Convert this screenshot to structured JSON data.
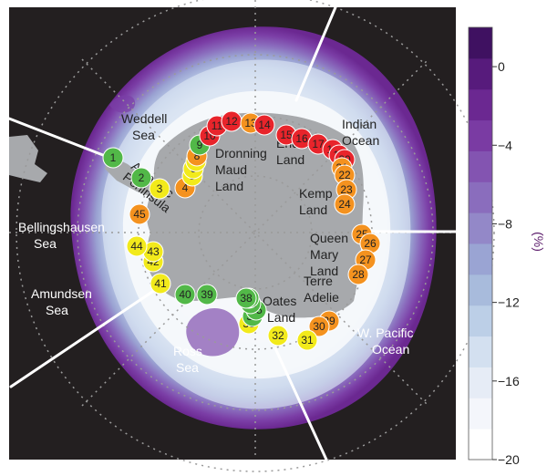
{
  "colorbar": {
    "ticks": [
      {
        "value": 0,
        "label": "0"
      },
      {
        "value": -4,
        "label": "−4"
      },
      {
        "value": -8,
        "label": "−8"
      },
      {
        "value": -12,
        "label": "−12"
      },
      {
        "value": -16,
        "label": "−16"
      },
      {
        "value": -20,
        "label": "−20"
      }
    ],
    "unit": "(%)",
    "range": [
      -20,
      2
    ],
    "colors": [
      "#ffffff",
      "#f4f6fb",
      "#e6ecf6",
      "#d3e0f0",
      "#bccfe7",
      "#a8bbdc",
      "#9aa4d3",
      "#9388c8",
      "#8a6dbd",
      "#8354b1",
      "#7a3ba3",
      "#6b2891",
      "#571b7c",
      "#3f1161"
    ]
  },
  "regions": {
    "weddell": [
      "Weddell",
      "Sea"
    ],
    "indian": [
      "Indian",
      "Ocean"
    ],
    "dronning": [
      "Dronning",
      "Maud",
      "Land"
    ],
    "enderby": [
      "Enderby",
      "Land"
    ],
    "kemp": [
      "Kemp",
      "Land"
    ],
    "antarctic_peninsula": [
      "Antarctic",
      "Peninsula"
    ],
    "bellingshausen": [
      "Bellingshausen",
      "Sea"
    ],
    "amundsen": [
      "Amundsen",
      "Sea"
    ],
    "queen_mary": [
      "Queen",
      "Mary",
      "Land"
    ],
    "terre_adelie": [
      "Terre",
      "Adelie"
    ],
    "oates": [
      "Oates",
      "Land"
    ],
    "wpacific": [
      "W. Pacific",
      "Ocean"
    ],
    "ross": [
      "Ross",
      "Sea"
    ]
  },
  "site_colors": {
    "red": "#e8242b",
    "orange": "#f4921f",
    "yellow": "#f2ea1b",
    "green": "#52b848"
  },
  "sites": [
    {
      "n": "1",
      "c": "green"
    },
    {
      "n": "2",
      "c": "green"
    },
    {
      "n": "3",
      "c": "yellow"
    },
    {
      "n": "4",
      "c": "orange"
    },
    {
      "n": "5",
      "c": "yellow"
    },
    {
      "n": "6",
      "c": "yellow"
    },
    {
      "n": "7",
      "c": "yellow"
    },
    {
      "n": "8",
      "c": "orange"
    },
    {
      "n": "9",
      "c": "green"
    },
    {
      "n": "10",
      "c": "red"
    },
    {
      "n": "11",
      "c": "red"
    },
    {
      "n": "12",
      "c": "red"
    },
    {
      "n": "13",
      "c": "orange"
    },
    {
      "n": "14",
      "c": "red"
    },
    {
      "n": "15",
      "c": "red"
    },
    {
      "n": "16",
      "c": "red"
    },
    {
      "n": "17",
      "c": "red"
    },
    {
      "n": "18",
      "c": "red"
    },
    {
      "n": "19",
      "c": "red"
    },
    {
      "n": "20",
      "c": "red"
    },
    {
      "n": "21",
      "c": "orange"
    },
    {
      "n": "22",
      "c": "orange"
    },
    {
      "n": "23",
      "c": "orange"
    },
    {
      "n": "24",
      "c": "orange"
    },
    {
      "n": "25",
      "c": "orange"
    },
    {
      "n": "26",
      "c": "orange"
    },
    {
      "n": "27",
      "c": "orange"
    },
    {
      "n": "28",
      "c": "orange"
    },
    {
      "n": "29",
      "c": "orange"
    },
    {
      "n": "30",
      "c": "orange"
    },
    {
      "n": "31",
      "c": "yellow"
    },
    {
      "n": "32",
      "c": "yellow"
    },
    {
      "n": "33",
      "c": "yellow"
    },
    {
      "n": "34",
      "c": "green"
    },
    {
      "n": "35",
      "c": "green"
    },
    {
      "n": "36",
      "c": "green"
    },
    {
      "n": "37",
      "c": "green"
    },
    {
      "n": "38",
      "c": "green"
    },
    {
      "n": "39",
      "c": "green"
    },
    {
      "n": "40",
      "c": "green"
    },
    {
      "n": "41",
      "c": "yellow"
    },
    {
      "n": "42",
      "c": "yellow"
    },
    {
      "n": "43",
      "c": "yellow"
    },
    {
      "n": "44",
      "c": "yellow"
    },
    {
      "n": "45",
      "c": "orange"
    }
  ]
}
